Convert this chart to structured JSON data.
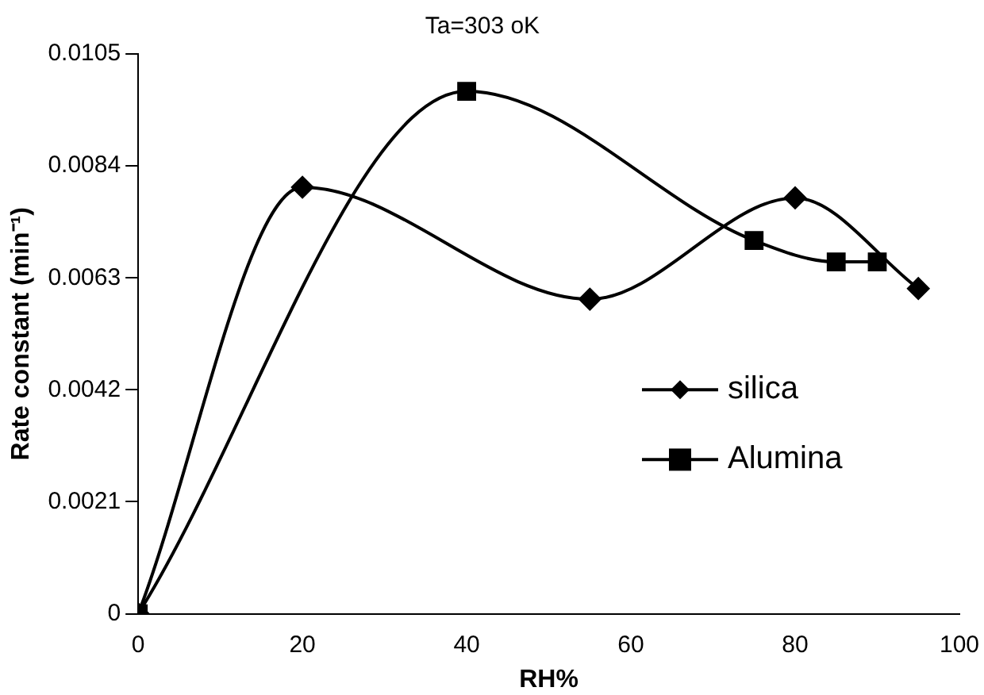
{
  "chart_data": {
    "type": "line",
    "title": "Ta=303 oK",
    "xlabel": "RH%",
    "ylabel": "Rate constant (min⁻¹)",
    "xlim": [
      0,
      100
    ],
    "xticks": [
      0,
      20,
      40,
      60,
      80,
      100
    ],
    "ylim": [
      0,
      0.0105
    ],
    "yticks": [
      0,
      0.0021,
      0.0042,
      0.0063,
      0.0084,
      0.0105
    ],
    "grid": false,
    "legend": "right",
    "line_style": "solid",
    "series": [
      {
        "name": "silica",
        "color": "#000000",
        "marker": "diamond",
        "x": [
          0,
          20,
          55,
          80,
          95
        ],
        "values": [
          0,
          0.008,
          0.0059,
          0.0078,
          0.0061
        ]
      },
      {
        "name": "Alumina",
        "color": "#000000",
        "marker": "square",
        "x": [
          0,
          40,
          75,
          85,
          90
        ],
        "values": [
          0,
          0.0098,
          0.007,
          0.0066,
          0.0066
        ]
      }
    ]
  }
}
